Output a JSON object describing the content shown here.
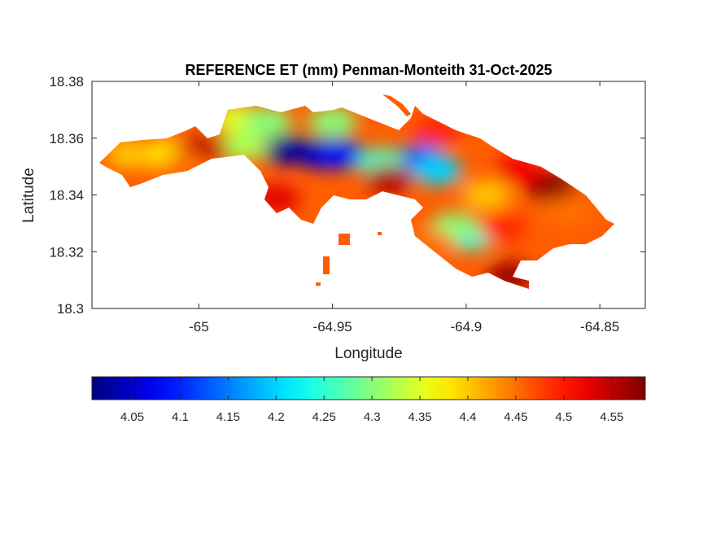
{
  "chart_data": {
    "type": "heatmap",
    "title": "REFERENCE ET (mm) Penman-Monteith 31-Oct-2025",
    "xlabel": "Longitude",
    "ylabel": "Latitude",
    "xlim": [
      -65.04,
      -64.833
    ],
    "ylim": [
      18.3,
      18.38
    ],
    "xticks": [
      "-65",
      "-64.95",
      "-64.9",
      "-64.85"
    ],
    "xtick_values": [
      -65,
      -64.95,
      -64.9,
      -64.85
    ],
    "yticks": [
      "18.38",
      "18.36",
      "18.34",
      "18.32",
      "18.3"
    ],
    "ytick_values": [
      18.38,
      18.36,
      18.34,
      18.32,
      18.3
    ],
    "colormap": "jet",
    "grid": false,
    "colorbar": {
      "location": "bottom",
      "clim": [
        4.008,
        4.585
      ],
      "ticks": [
        "4.05",
        "4.1",
        "4.15",
        "4.2",
        "4.25",
        "4.3",
        "4.35",
        "4.4",
        "4.45",
        "4.5",
        "4.55"
      ],
      "tick_values": [
        4.05,
        4.1,
        4.15,
        4.2,
        4.25,
        4.3,
        4.35,
        4.4,
        4.45,
        4.5,
        4.55
      ]
    },
    "background_value": 4.46,
    "points": [
      {
        "lon": -64.9667,
        "lat": 18.3557,
        "value": 4.02
      },
      {
        "lon": -64.9545,
        "lat": 18.3543,
        "value": 4.04
      },
      {
        "lon": -64.947,
        "lat": 18.3543,
        "value": 4.09
      },
      {
        "lon": -64.9167,
        "lat": 18.3529,
        "value": 4.12
      },
      {
        "lon": -64.9106,
        "lat": 18.3486,
        "value": 4.2
      },
      {
        "lon": -64.9318,
        "lat": 18.3514,
        "value": 4.26
      },
      {
        "lon": -64.9833,
        "lat": 18.3571,
        "value": 4.32
      },
      {
        "lon": -64.9864,
        "lat": 18.3671,
        "value": 4.35
      },
      {
        "lon": -64.9742,
        "lat": 18.3657,
        "value": 4.3
      },
      {
        "lon": -64.95,
        "lat": 18.3657,
        "value": 4.3
      },
      {
        "lon": -64.8985,
        "lat": 18.3257,
        "value": 4.24
      },
      {
        "lon": -64.9045,
        "lat": 18.3286,
        "value": 4.3
      },
      {
        "lon": -65.0136,
        "lat": 18.3543,
        "value": 4.38
      },
      {
        "lon": -65.0258,
        "lat": 18.3543,
        "value": 4.4
      },
      {
        "lon": -64.9985,
        "lat": 18.3557,
        "value": 4.55
      },
      {
        "lon": -64.9712,
        "lat": 18.3386,
        "value": 4.53
      },
      {
        "lon": -64.9288,
        "lat": 18.3457,
        "value": 4.56
      },
      {
        "lon": -64.8682,
        "lat": 18.3429,
        "value": 4.58
      },
      {
        "lon": -64.8803,
        "lat": 18.3486,
        "value": 4.52
      },
      {
        "lon": -64.8621,
        "lat": 18.3343,
        "value": 4.45
      },
      {
        "lon": -64.8924,
        "lat": 18.34,
        "value": 4.4
      },
      {
        "lon": -64.8864,
        "lat": 18.3286,
        "value": 4.49
      },
      {
        "lon": -64.9106,
        "lat": 18.3629,
        "value": 4.49
      },
      {
        "lon": -64.8833,
        "lat": 18.3114,
        "value": 4.57
      },
      {
        "lon": -64.9136,
        "lat": 18.3229,
        "value": 4.45
      },
      {
        "lon": -65.0045,
        "lat": 18.35,
        "value": 4.45
      }
    ]
  }
}
